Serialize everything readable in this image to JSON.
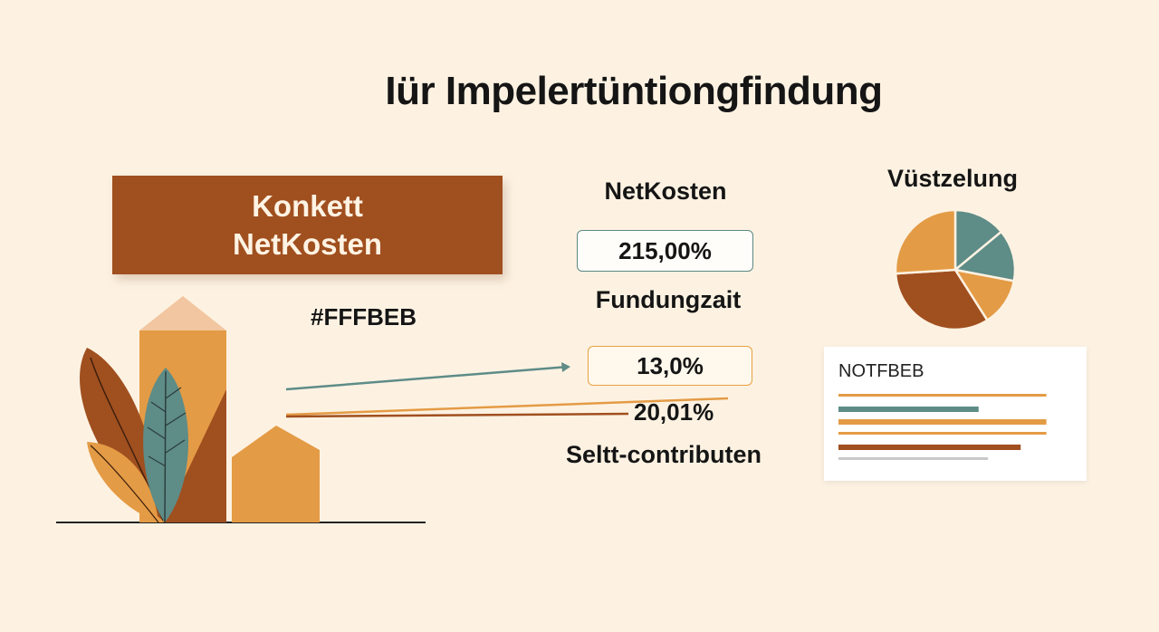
{
  "title": "Iür Impelertüntiongfindung",
  "banner": {
    "line1": "Konkett",
    "line2": "NetKosten"
  },
  "hex_label": "#FFFBEB",
  "center": {
    "net_label": "NetKosten",
    "net_value": "215,00%",
    "funding_label": "Fundungzait",
    "value_b": "13,0%",
    "value_c": "20,01%",
    "self_label": "Seltt-contributen"
  },
  "pie": {
    "title": "Vüstzelung",
    "slices": [
      {
        "value": 14,
        "color": "#5e8c87"
      },
      {
        "value": 14,
        "color": "#5e8c87"
      },
      {
        "value": 13,
        "color": "#e49b45"
      },
      {
        "value": 33,
        "color": "#a04f1f"
      },
      {
        "value": 26,
        "color": "#e49b45"
      }
    ]
  },
  "card": {
    "title": "NOTFBEB",
    "bars": [
      {
        "value": 0.89,
        "color": "#e49b45"
      },
      {
        "value": 0.6,
        "color": "#5e8c87"
      },
      {
        "value": 0.89,
        "color": "#e49b45"
      },
      {
        "value": 0.89,
        "color": "#e49b45"
      },
      {
        "value": 0.78,
        "color": "#a04f1f"
      },
      {
        "value": 0.64,
        "color": "#c9c9c9"
      }
    ]
  },
  "colors": {
    "background": "#fdf2e2",
    "brown": "#a04f1f",
    "orange": "#e49b45",
    "teal": "#5e8c87",
    "peach": "#f2c6a0"
  }
}
